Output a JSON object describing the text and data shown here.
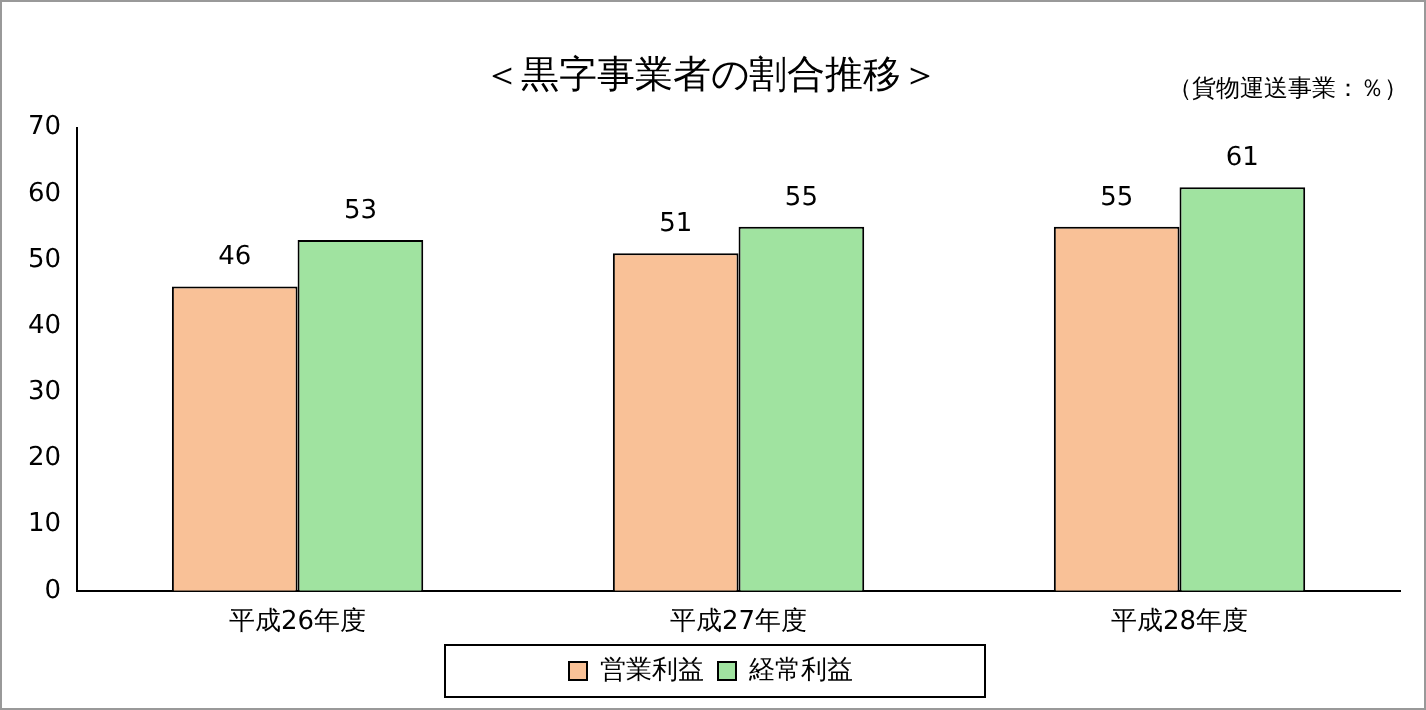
{
  "chart_data": {
    "type": "bar",
    "title": "＜黒字事業者の割合推移＞",
    "annotations": [
      "（貨物運送事業：％）"
    ],
    "categories": [
      "平成26年度",
      "平成27年度",
      "平成28年度"
    ],
    "series": [
      {
        "name": "営業利益",
        "color": "#f9c197",
        "values": [
          46,
          51,
          55
        ]
      },
      {
        "name": "経常利益",
        "color": "#a0e3a0",
        "values": [
          53,
          55,
          61
        ]
      }
    ],
    "ylim": [
      0,
      70
    ],
    "yticks": [
      0,
      10,
      20,
      30,
      40,
      50,
      60,
      70
    ],
    "grid": false,
    "legend": "bottom",
    "data_labels": true
  }
}
